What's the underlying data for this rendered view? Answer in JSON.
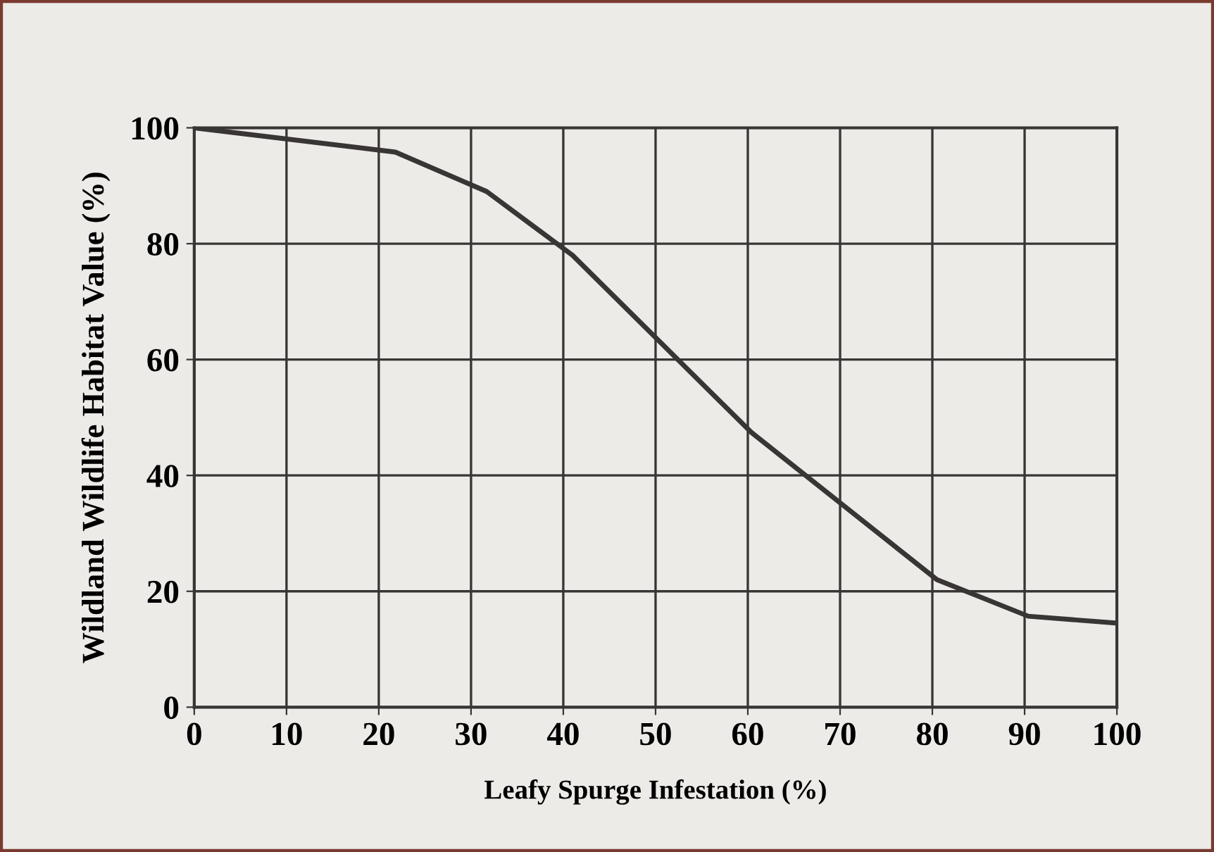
{
  "chart_data": {
    "type": "line",
    "xlabel": "Leafy Spurge Infestation (%)",
    "ylabel": "Wildland Wildlife Habitat Value (%)",
    "x": [
      0,
      21.8,
      31.7,
      41,
      60.4,
      80.5,
      90.4,
      100
    ],
    "series": [
      {
        "color": "#3a3535",
        "values": [
          100,
          95.8,
          89,
          78,
          47.4,
          22,
          15.7,
          14.5
        ]
      }
    ],
    "xlim": [
      0,
      100
    ],
    "ylim": [
      0,
      100
    ],
    "xticks": [
      0,
      10,
      20,
      30,
      40,
      50,
      60,
      70,
      80,
      90,
      100
    ],
    "yticks": [
      0,
      20,
      40,
      60,
      80,
      100
    ],
    "grid": true,
    "marker": "none",
    "line_style": "solid"
  }
}
